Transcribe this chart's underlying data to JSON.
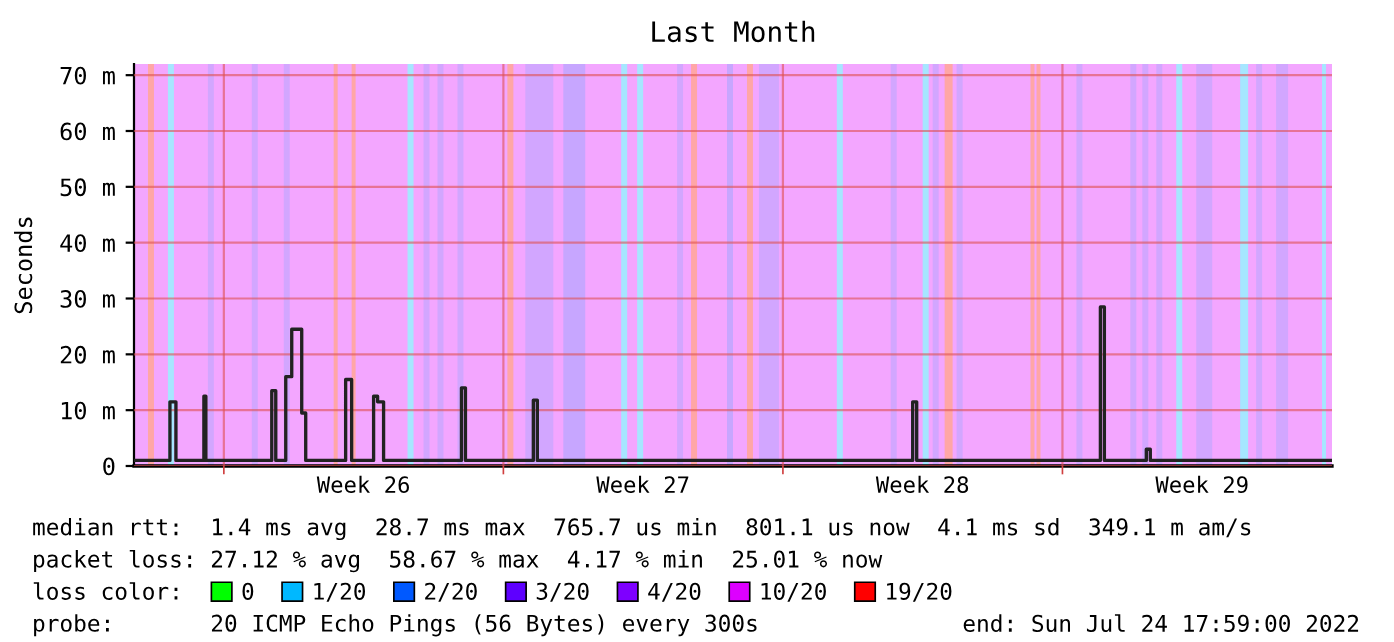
{
  "chart_data": {
    "type": "step",
    "title": "Last Month",
    "ylabel": "Seconds",
    "xlim": [
      "2022-06-24T18:00",
      "2022-07-24T18:00"
    ],
    "ylim": [
      0,
      72
    ],
    "xticks": [
      {
        "value": "2022-06-27",
        "label": null
      },
      {
        "value": "2022-06-30T12:00",
        "label": "Week 26"
      },
      {
        "value": "2022-07-04",
        "label": null
      },
      {
        "value": "2022-07-07T12:00",
        "label": "Week 27"
      },
      {
        "value": "2022-07-11",
        "label": null
      },
      {
        "value": "2022-07-14T12:00",
        "label": "Week 28"
      },
      {
        "value": "2022-07-18",
        "label": null
      },
      {
        "value": "2022-07-21T12:00",
        "label": "Week 29"
      }
    ],
    "yticks": [
      {
        "value": 0,
        "label": "0"
      },
      {
        "value": 10,
        "label": "10 m"
      },
      {
        "value": 20,
        "label": "20 m"
      },
      {
        "value": 30,
        "label": "30 m"
      },
      {
        "value": 40,
        "label": "40 m"
      },
      {
        "value": 50,
        "label": "50 m"
      },
      {
        "value": 60,
        "label": "60 m"
      },
      {
        "value": 70,
        "label": "70 m"
      }
    ],
    "grid": true,
    "legend": "bottom",
    "legend_title": "loss color:",
    "series": [
      {
        "color": "#222222",
        "x": [
          "2022-06-24T18:00",
          "2022-06-25T15:36",
          "2022-06-25T19:12",
          "2022-06-26T12:00",
          "2022-06-26T13:12",
          "2022-06-28T04:48",
          "2022-06-28T07:12",
          "2022-06-28T13:12",
          "2022-06-28T16:48",
          "2022-06-28T22:48",
          "2022-06-29T01:12",
          "2022-06-30T01:12",
          "2022-06-30T04:48",
          "2022-06-30T18:00",
          "2022-06-30T20:24",
          "2022-07-01T00:00",
          "2022-07-02T22:48",
          "2022-07-03T01:12",
          "2022-07-04T18:00",
          "2022-07-04T20:24",
          "2022-07-14T06:00",
          "2022-07-14T08:24",
          "2022-07-18T22:48",
          "2022-07-19T01:12",
          "2022-07-20T02:24",
          "2022-07-20T04:48",
          "2022-07-24T18:00"
        ],
        "values": [
          1.0,
          11.5,
          1.0,
          12.5,
          1.0,
          13.5,
          1.0,
          16,
          24.5,
          9.5,
          1.0,
          15.5,
          1.0,
          12.5,
          11.5,
          1.0,
          14,
          1.0,
          11.8,
          1.0,
          11.5,
          1.0,
          28.5,
          1.0,
          3,
          1.0,
          1.0
        ]
      },
      {
        "name": "0",
        "color": "#00ff00"
      },
      {
        "name": "1/20",
        "color": "#00b8ff"
      },
      {
        "name": "2/20",
        "color": "#0059ff"
      },
      {
        "name": "3/20",
        "color": "#5e00ff"
      },
      {
        "name": "4/20",
        "color": "#7e00ff"
      },
      {
        "name": "10/20",
        "color": "#dd00ff"
      },
      {
        "name": "19/20",
        "color": "#ff0000"
      }
    ],
    "bands": [
      {
        "axis": "x",
        "from": "2022-06-24T18:00",
        "to": "2022-07-24T18:00",
        "color": "#f3a6ff"
      },
      {
        "axis": "x",
        "from": "2022-06-25T02:24",
        "to": "2022-06-25T06:00",
        "color": "#ffa6a6"
      },
      {
        "axis": "x",
        "from": "2022-06-25T14:24",
        "to": "2022-06-25T18:00",
        "color": "#a6e6ff"
      },
      {
        "axis": "x",
        "from": "2022-06-26T14:24",
        "to": "2022-06-26T18:00",
        "color": "#d2a6ff"
      },
      {
        "axis": "x",
        "from": "2022-06-27T16:48",
        "to": "2022-06-27T20:24",
        "color": "#d2a6ff"
      },
      {
        "axis": "x",
        "from": "2022-06-28T12:00",
        "to": "2022-06-28T15:36",
        "color": "#d2a6ff"
      },
      {
        "axis": "x",
        "from": "2022-06-29T18:00",
        "to": "2022-06-29T20:24",
        "color": "#ffa6a6"
      },
      {
        "axis": "x",
        "from": "2022-06-30T04:48",
        "to": "2022-06-30T07:12",
        "color": "#ffa6a6"
      },
      {
        "axis": "x",
        "from": "2022-07-01T14:24",
        "to": "2022-07-01T18:00",
        "color": "#a6e6ff"
      },
      {
        "axis": "x",
        "from": "2022-07-02T00:00",
        "to": "2022-07-02T03:36",
        "color": "#d2a6ff"
      },
      {
        "axis": "x",
        "from": "2022-07-02T08:24",
        "to": "2022-07-02T12:00",
        "color": "#d2a6ff"
      },
      {
        "axis": "x",
        "from": "2022-07-02T20:24",
        "to": "2022-07-03T00:00",
        "color": "#d2a6ff"
      },
      {
        "axis": "x",
        "from": "2022-07-04T02:24",
        "to": "2022-07-04T06:00",
        "color": "#ffa6a6"
      },
      {
        "axis": "x",
        "from": "2022-07-04T13:12",
        "to": "2022-07-05T06:00",
        "color": "#d2a6ff"
      },
      {
        "axis": "x",
        "from": "2022-07-05T12:00",
        "to": "2022-07-06T01:12",
        "color": "#c7a6ff"
      },
      {
        "axis": "x",
        "from": "2022-07-06T22:48",
        "to": "2022-07-07T02:24",
        "color": "#a6e6ff"
      },
      {
        "axis": "x",
        "from": "2022-07-07T08:24",
        "to": "2022-07-07T12:00",
        "color": "#a6e6ff"
      },
      {
        "axis": "x",
        "from": "2022-07-08T08:24",
        "to": "2022-07-08T12:00",
        "color": "#d2a6ff"
      },
      {
        "axis": "x",
        "from": "2022-07-08T16:48",
        "to": "2022-07-08T20:24",
        "color": "#ffa6a6"
      },
      {
        "axis": "x",
        "from": "2022-07-09T14:24",
        "to": "2022-07-09T18:00",
        "color": "#c7a6ff"
      },
      {
        "axis": "x",
        "from": "2022-07-10T02:24",
        "to": "2022-07-10T06:00",
        "color": "#ffa6a6"
      },
      {
        "axis": "x",
        "from": "2022-07-10T09:36",
        "to": "2022-07-10T21:36",
        "color": "#d2a6ff"
      },
      {
        "axis": "x",
        "from": "2022-07-12T08:24",
        "to": "2022-07-12T12:00",
        "color": "#a6e6ff"
      },
      {
        "axis": "x",
        "from": "2022-07-13T16:48",
        "to": "2022-07-13T20:24",
        "color": "#d2a6ff"
      },
      {
        "axis": "x",
        "from": "2022-07-14T12:00",
        "to": "2022-07-14T15:36",
        "color": "#a6e6ff"
      },
      {
        "axis": "x",
        "from": "2022-07-14T18:00",
        "to": "2022-07-14T21:36",
        "color": "#d2a6ff"
      },
      {
        "axis": "x",
        "from": "2022-07-15T01:12",
        "to": "2022-07-15T06:00",
        "color": "#ffa6a6"
      },
      {
        "axis": "x",
        "from": "2022-07-15T08:24",
        "to": "2022-07-15T12:00",
        "color": "#d2a6ff"
      },
      {
        "axis": "x",
        "from": "2022-07-17T04:48",
        "to": "2022-07-17T07:12",
        "color": "#ffa6a6"
      },
      {
        "axis": "x",
        "from": "2022-07-17T08:24",
        "to": "2022-07-17T10:48",
        "color": "#ffa6a6"
      },
      {
        "axis": "x",
        "from": "2022-07-18T08:24",
        "to": "2022-07-18T12:00",
        "color": "#d2a6ff"
      },
      {
        "axis": "x",
        "from": "2022-07-19T16:48",
        "to": "2022-07-19T20:24",
        "color": "#d2a6ff"
      },
      {
        "axis": "x",
        "from": "2022-07-20T00:00",
        "to": "2022-07-20T03:36",
        "color": "#d2a6ff"
      },
      {
        "axis": "x",
        "from": "2022-07-20T08:24",
        "to": "2022-07-20T12:00",
        "color": "#d2a6ff"
      },
      {
        "axis": "x",
        "from": "2022-07-20T20:24",
        "to": "2022-07-21T00:00",
        "color": "#a6e6ff"
      },
      {
        "axis": "x",
        "from": "2022-07-21T08:24",
        "to": "2022-07-21T18:00",
        "color": "#d2a6ff"
      },
      {
        "axis": "x",
        "from": "2022-07-22T10:48",
        "to": "2022-07-22T15:36",
        "color": "#a6e6ff"
      },
      {
        "axis": "x",
        "from": "2022-07-22T20:24",
        "to": "2022-07-23T00:00",
        "color": "#d2a6ff"
      },
      {
        "axis": "x",
        "from": "2022-07-23T08:24",
        "to": "2022-07-23T15:36",
        "color": "#d2a6ff"
      },
      {
        "axis": "x",
        "from": "2022-07-24T12:00",
        "to": "2022-07-24T14:24",
        "color": "#a6e6ff"
      }
    ],
    "annotations": [
      "median rtt:  1.4 ms avg  28.7 ms max  765.7 us min  801.1 us now  4.1 ms sd  349.1 m am/s",
      "packet loss: 27.12 % avg  58.67 % max  4.17 % min  25.01 % now",
      "probe:       20 ICMP Echo Pings (56 Bytes) every 300s",
      "end: Sun Jul 24 17:59:00 2022"
    ]
  }
}
